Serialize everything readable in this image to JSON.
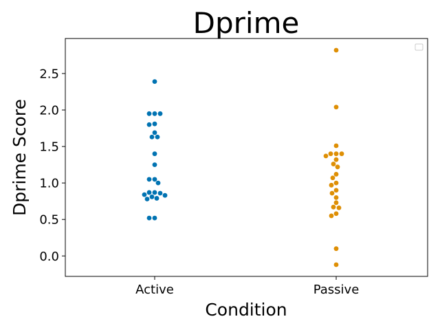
{
  "chart_data": {
    "type": "scatter",
    "title": "Dprime",
    "xlabel": "Condition",
    "ylabel": "Dprime Score",
    "categories": [
      "Active",
      "Passive"
    ],
    "ylim": [
      -0.28,
      2.98
    ],
    "yticks": [
      0.0,
      0.5,
      1.0,
      1.5,
      2.0,
      2.5
    ],
    "ytick_labels": [
      "0.0",
      "0.5",
      "1.0",
      "1.5",
      "2.0",
      "2.5"
    ],
    "grid": false,
    "legend": "top-right",
    "colors": {
      "Active": "#0173b2",
      "Passive": "#de8f05"
    },
    "series": [
      {
        "category": "Active",
        "values": [
          2.39,
          1.95,
          1.95,
          1.95,
          1.81,
          1.8,
          1.69,
          1.63,
          1.63,
          1.4,
          1.25,
          1.05,
          1.05,
          1.0,
          0.87,
          0.87,
          0.86,
          0.84,
          0.83,
          0.81,
          0.79,
          0.78,
          0.52,
          0.52
        ]
      },
      {
        "category": "Passive",
        "values": [
          2.82,
          2.04,
          1.51,
          1.4,
          1.4,
          1.4,
          1.37,
          1.32,
          1.26,
          1.22,
          1.12,
          1.07,
          1.0,
          0.97,
          0.9,
          0.86,
          0.8,
          0.73,
          0.67,
          0.66,
          0.58,
          0.55,
          0.1,
          -0.12
        ]
      }
    ]
  }
}
